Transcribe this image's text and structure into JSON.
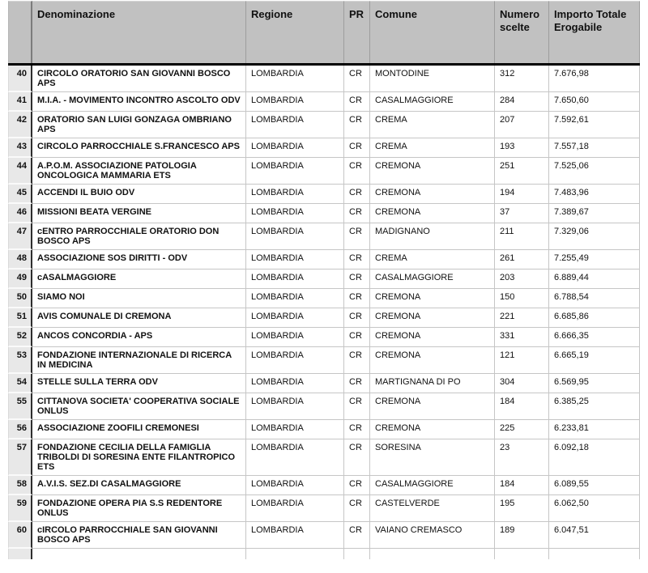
{
  "colors": {
    "header_bg": "#c1c1c1",
    "row_number_bg": "#e8e8e8",
    "header_divider": "#000000",
    "grid_line": "#c6c6c6",
    "text": "#111111"
  },
  "table": {
    "columns": [
      {
        "key": "n",
        "label": ""
      },
      {
        "key": "denominazione",
        "label": "Denominazione"
      },
      {
        "key": "regione",
        "label": "Regione"
      },
      {
        "key": "pr",
        "label": "PR"
      },
      {
        "key": "comune",
        "label": "Comune"
      },
      {
        "key": "numero_scelte",
        "label": "Numero scelte"
      },
      {
        "key": "importo",
        "label": "Importo Totale Erogabile"
      }
    ],
    "rows": [
      {
        "n": "40",
        "denominazione": "CIRCOLO ORATORIO SAN GIOVANNI BOSCO APS",
        "regione": "LOMBARDIA",
        "pr": "CR",
        "comune": "MONTODINE",
        "numero_scelte": "312",
        "importo": "7.676,98"
      },
      {
        "n": "41",
        "denominazione": "M.I.A. - MOVIMENTO INCONTRO ASCOLTO ODV",
        "regione": "LOMBARDIA",
        "pr": "CR",
        "comune": "CASALMAGGIORE",
        "numero_scelte": "284",
        "importo": "7.650,60"
      },
      {
        "n": "42",
        "denominazione": "ORATORIO SAN LUIGI GONZAGA OMBRIANO APS",
        "regione": "LOMBARDIA",
        "pr": "CR",
        "comune": "CREMA",
        "numero_scelte": "207",
        "importo": "7.592,61"
      },
      {
        "n": "43",
        "denominazione": "CIRCOLO PARROCCHIALE S.FRANCESCO APS",
        "regione": "LOMBARDIA",
        "pr": "CR",
        "comune": "CREMA",
        "numero_scelte": "193",
        "importo": "7.557,18"
      },
      {
        "n": "44",
        "denominazione": "A.P.O.M. ASSOCIAZIONE PATOLOGIA ONCOLOGICA MAMMARIA ETS",
        "regione": "LOMBARDIA",
        "pr": "CR",
        "comune": "CREMONA",
        "numero_scelte": "251",
        "importo": "7.525,06"
      },
      {
        "n": "45",
        "denominazione": "ACCENDI IL BUIO ODV",
        "regione": "LOMBARDIA",
        "pr": "CR",
        "comune": "CREMONA",
        "numero_scelte": "194",
        "importo": "7.483,96"
      },
      {
        "n": "46",
        "denominazione": "MISSIONI BEATA VERGINE",
        "regione": "LOMBARDIA",
        "pr": "CR",
        "comune": "CREMONA",
        "numero_scelte": "37",
        "importo": "7.389,67"
      },
      {
        "n": "47",
        "denominazione": "cENTRO PARROCCHIALE ORATORIO DON BOSCO APS",
        "regione": "LOMBARDIA",
        "pr": "CR",
        "comune": "MADIGNANO",
        "numero_scelte": "211",
        "importo": "7.329,06"
      },
      {
        "n": "48",
        "denominazione": "ASSOCIAZIONE SOS DIRITTI - ODV",
        "regione": "LOMBARDIA",
        "pr": "CR",
        "comune": "CREMA",
        "numero_scelte": "261",
        "importo": "7.255,49"
      },
      {
        "n": "49",
        "denominazione": "cASALMAGGIORE",
        "regione": "LOMBARDIA",
        "pr": "CR",
        "comune": "CASALMAGGIORE",
        "numero_scelte": "203",
        "importo": "6.889,44"
      },
      {
        "n": "50",
        "denominazione": "SIAMO NOI",
        "regione": "LOMBARDIA",
        "pr": "CR",
        "comune": "CREMONA",
        "numero_scelte": "150",
        "importo": "6.788,54"
      },
      {
        "n": "51",
        "denominazione": "AVIS COMUNALE DI CREMONA",
        "regione": "LOMBARDIA",
        "pr": "CR",
        "comune": "CREMONA",
        "numero_scelte": "221",
        "importo": "6.685,86"
      },
      {
        "n": "52",
        "denominazione": "ANCOS CONCORDIA - APS",
        "regione": "LOMBARDIA",
        "pr": "CR",
        "comune": "CREMONA",
        "numero_scelte": "331",
        "importo": "6.666,35"
      },
      {
        "n": "53",
        "denominazione": "FONDAZIONE INTERNAZIONALE DI RICERCA IN MEDICINA",
        "regione": "LOMBARDIA",
        "pr": "CR",
        "comune": "CREMONA",
        "numero_scelte": "121",
        "importo": "6.665,19"
      },
      {
        "n": "54",
        "denominazione": "STELLE SULLA TERRA ODV",
        "regione": "LOMBARDIA",
        "pr": "CR",
        "comune": "MARTIGNANA DI PO",
        "numero_scelte": "304",
        "importo": "6.569,95"
      },
      {
        "n": "55",
        "denominazione": "CITTANOVA SOCIETA' COOPERATIVA SOCIALE ONLUS",
        "regione": "LOMBARDIA",
        "pr": "CR",
        "comune": "CREMONA",
        "numero_scelte": "184",
        "importo": "6.385,25"
      },
      {
        "n": "56",
        "denominazione": "ASSOCIAZIONE ZOOFILI CREMONESI",
        "regione": "LOMBARDIA",
        "pr": "CR",
        "comune": "CREMONA",
        "numero_scelte": "225",
        "importo": "6.233,81"
      },
      {
        "n": "57",
        "denominazione": "FONDAZIONE CECILIA DELLA FAMIGLIA TRIBOLDI DI SORESINA ENTE FILANTROPICO ETS",
        "regione": "LOMBARDIA",
        "pr": "CR",
        "comune": "SORESINA",
        "numero_scelte": "23",
        "importo": "6.092,18"
      },
      {
        "n": "58",
        "denominazione": "A.V.I.S. SEZ.DI CASALMAGGIORE",
        "regione": "LOMBARDIA",
        "pr": "CR",
        "comune": "CASALMAGGIORE",
        "numero_scelte": "184",
        "importo": "6.089,55"
      },
      {
        "n": "59",
        "denominazione": "FONDAZIONE OPERA PIA S.S REDENTORE ONLUS",
        "regione": "LOMBARDIA",
        "pr": "CR",
        "comune": "CASTELVERDE",
        "numero_scelte": "195",
        "importo": "6.062,50"
      },
      {
        "n": "60",
        "denominazione": "cIRCOLO PARROCCHIALE SAN GIOVANNI BOSCO APS",
        "regione": "LOMBARDIA",
        "pr": "CR",
        "comune": "VAIANO CREMASCO",
        "numero_scelte": "189",
        "importo": "6.047,51"
      }
    ]
  }
}
